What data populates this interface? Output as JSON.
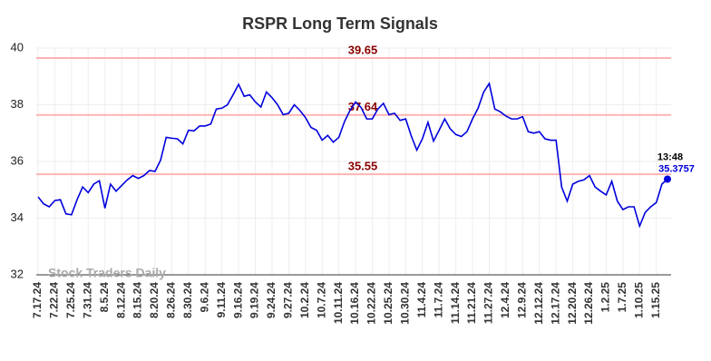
{
  "chart_data": {
    "type": "line",
    "title": "RSPR Long Term Signals",
    "categories": [
      "7.17.24",
      null,
      null,
      "7.22.24",
      null,
      null,
      "7.25.24",
      null,
      null,
      "7.31.24",
      null,
      null,
      "8.5.24",
      null,
      null,
      "8.12.24",
      null,
      null,
      "8.15.24",
      null,
      null,
      "8.20.24",
      null,
      null,
      "8.26.24",
      null,
      null,
      "8.30.24",
      null,
      null,
      "9.6.24",
      null,
      null,
      "9.11.24",
      null,
      null,
      "9.16.24",
      null,
      null,
      "9.19.24",
      null,
      null,
      "9.24.24",
      null,
      null,
      "9.27.24",
      null,
      null,
      "10.2.24",
      null,
      null,
      "10.7.24",
      null,
      null,
      "10.11.24",
      null,
      null,
      "10.16.24",
      null,
      null,
      "10.22.24",
      null,
      null,
      "10.25.24",
      null,
      null,
      "10.30.24",
      null,
      null,
      "11.4.24",
      null,
      null,
      "11.7.24",
      null,
      null,
      "11.14.24",
      null,
      null,
      "11.21.24",
      null,
      null,
      "11.27.24",
      null,
      null,
      "12.4.24",
      null,
      null,
      "12.9.24",
      null,
      null,
      "12.12.24",
      null,
      null,
      "12.17.24",
      null,
      null,
      "12.20.24",
      null,
      null,
      "12.26.24",
      null,
      null,
      "1.2.25",
      null,
      null,
      "1.7.25",
      null,
      null,
      "1.10.25",
      null,
      null,
      "1.15.25",
      null,
      null
    ],
    "series": [
      {
        "name": "RSPR",
        "color": "#0000dd",
        "values": [
          34.75,
          34.5,
          34.4,
          34.62,
          34.65,
          34.15,
          34.12,
          34.65,
          35.1,
          34.9,
          35.2,
          35.32,
          34.35,
          35.2,
          34.95,
          35.15,
          35.35,
          35.5,
          35.4,
          35.5,
          35.68,
          35.65,
          36.05,
          36.85,
          36.82,
          36.8,
          36.62,
          37.1,
          37.08,
          37.25,
          37.25,
          37.32,
          37.85,
          37.88,
          38.0,
          38.35,
          38.72,
          38.3,
          38.35,
          38.1,
          37.92,
          38.45,
          38.25,
          38.0,
          37.65,
          37.7,
          38.0,
          37.8,
          37.55,
          37.2,
          37.1,
          36.75,
          36.92,
          36.68,
          36.85,
          37.4,
          37.8,
          38.1,
          37.9,
          37.5,
          37.5,
          37.85,
          38.05,
          37.65,
          37.7,
          37.45,
          37.5,
          36.9,
          36.4,
          36.8,
          37.38,
          36.72,
          37.1,
          37.5,
          37.15,
          36.95,
          36.88,
          37.05,
          37.5,
          37.88,
          38.45,
          38.75,
          37.85,
          37.75,
          37.6,
          37.5,
          37.5,
          37.58,
          37.05,
          37.0,
          37.05,
          36.8,
          36.75,
          36.75,
          35.1,
          34.6,
          35.2,
          35.3,
          35.35,
          35.5,
          35.1,
          34.95,
          34.82,
          35.3,
          34.6,
          34.3,
          34.4,
          34.4,
          33.72,
          34.2,
          34.4,
          34.55,
          35.2,
          35.3757
        ]
      }
    ],
    "hlines": [
      39.65,
      37.64,
      35.55
    ],
    "hline_color": "#ffb3b3",
    "hline_label_color": "#8b0000",
    "last_time": "13:48",
    "watermark": "Stock Traders Daily",
    "ylim": [
      32,
      40
    ],
    "yticks": [
      32,
      34,
      36,
      38,
      40
    ],
    "grid": true
  }
}
